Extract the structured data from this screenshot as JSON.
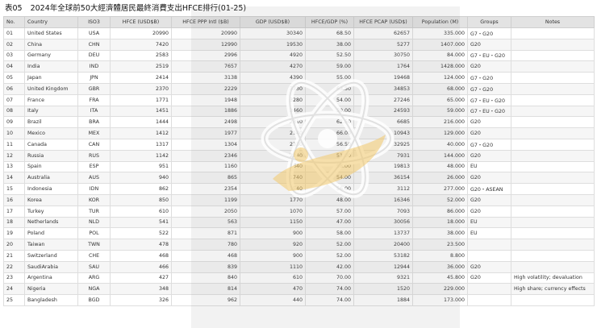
{
  "title": {
    "code": "表05",
    "text": "2024年全球前50大經濟體居民最終消費支出HFCE排行(01-25)"
  },
  "columns": [
    "No.",
    "Country",
    "ISO3",
    "HFCE (USD$B)",
    "HFCE PPP Intl ($B)",
    "GDP (USD$B)",
    "HFCE/GDP (%)",
    "HFCE PCAP (USD$)",
    "Population (M)",
    "Groups",
    "Notes"
  ],
  "rows": [
    [
      "01",
      "United States",
      "USA",
      "20990",
      "20990",
      "30340",
      "68.50",
      "62657",
      "335.000",
      "G7・G20",
      ""
    ],
    [
      "02",
      "China",
      "CHN",
      "7420",
      "12990",
      "19530",
      "38.00",
      "5277",
      "1407.000",
      "G20",
      ""
    ],
    [
      "03",
      "Germany",
      "DEU",
      "2583",
      "2996",
      "4920",
      "52.50",
      "30750",
      "84.000",
      "G7・EU・G20",
      ""
    ],
    [
      "04",
      "India",
      "IND",
      "2519",
      "7657",
      "4270",
      "59.00",
      "1764",
      "1428.000",
      "G20",
      ""
    ],
    [
      "05",
      "Japan",
      "JPN",
      "2414",
      "3138",
      "4390",
      "55.00",
      "19468",
      "124.000",
      "G7・G20",
      ""
    ],
    [
      "06",
      "United Kingdom",
      "GBR",
      "2370",
      "2229",
      "3730",
      "63.50",
      "34853",
      "68.000",
      "G7・G20",
      ""
    ],
    [
      "07",
      "France",
      "FRA",
      "1771",
      "1948",
      "3280",
      "54.00",
      "27246",
      "65.000",
      "G7・EU・G20",
      ""
    ],
    [
      "08",
      "Italy",
      "ITA",
      "1451",
      "1886",
      "2460",
      "59.00",
      "24593",
      "59.000",
      "G7・EU・G20",
      ""
    ],
    [
      "09",
      "Brazil",
      "BRA",
      "1444",
      "2498",
      "2310",
      "62.50",
      "6685",
      "216.000",
      "G20",
      ""
    ],
    [
      "10",
      "Mexico",
      "MEX",
      "1412",
      "1977",
      "2140",
      "66.00",
      "10943",
      "129.000",
      "G20",
      ""
    ],
    [
      "11",
      "Canada",
      "CAN",
      "1317",
      "1304",
      "2330",
      "56.50",
      "32925",
      "40.000",
      "G7・G20",
      ""
    ],
    [
      "12",
      "Russia",
      "RUS",
      "1142",
      "2346",
      "2240",
      "51.00",
      "7931",
      "144.000",
      "G20",
      ""
    ],
    [
      "13",
      "Spain",
      "ESP",
      "951",
      "1160",
      "1640",
      "58.00",
      "19813",
      "48.000",
      "EU",
      ""
    ],
    [
      "14",
      "Australia",
      "AUS",
      "940",
      "865",
      "1740",
      "54.00",
      "36154",
      "26.000",
      "G20",
      ""
    ],
    [
      "15",
      "Indonesia",
      "IDN",
      "862",
      "2354",
      "1540",
      "56.00",
      "3112",
      "277.000",
      "G20・ASEAN",
      ""
    ],
    [
      "16",
      "Korea",
      "KOR",
      "850",
      "1199",
      "1770",
      "48.00",
      "16346",
      "52.000",
      "G20",
      ""
    ],
    [
      "17",
      "Turkey",
      "TUR",
      "610",
      "2050",
      "1070",
      "57.00",
      "7093",
      "86.000",
      "G20",
      ""
    ],
    [
      "18",
      "Netherlands",
      "NLD",
      "541",
      "563",
      "1150",
      "47.00",
      "30056",
      "18.000",
      "EU",
      ""
    ],
    [
      "19",
      "Poland",
      "POL",
      "522",
      "871",
      "900",
      "58.00",
      "13737",
      "38.000",
      "EU",
      ""
    ],
    [
      "20",
      "Taiwan",
      "TWN",
      "478",
      "780",
      "920",
      "52.00",
      "20400",
      "23.500",
      "",
      ""
    ],
    [
      "21",
      "Switzerland",
      "CHE",
      "468",
      "468",
      "900",
      "52.00",
      "53182",
      "8.800",
      "",
      ""
    ],
    [
      "22",
      "SaudiArabia",
      "SAU",
      "466",
      "839",
      "1110",
      "42.00",
      "12944",
      "36.000",
      "G20",
      ""
    ],
    [
      "23",
      "Argentina",
      "ARG",
      "427",
      "840",
      "610",
      "70.00",
      "9321",
      "45.800",
      "G20",
      "High volatility; devaluation"
    ],
    [
      "24",
      "Nigeria",
      "NGA",
      "348",
      "814",
      "470",
      "74.00",
      "1520",
      "229.000",
      "",
      "High share; currency effects"
    ],
    [
      "25",
      "Bangladesh",
      "BGD",
      "326",
      "962",
      "440",
      "74.00",
      "1884",
      "173.000",
      "",
      ""
    ]
  ],
  "watermark": {
    "icon": "atom-logo-icon"
  },
  "colors": {
    "header_bg": "#e3e3e3",
    "row_alt": "#f6f6f6",
    "watermark": "#f2c96a"
  }
}
